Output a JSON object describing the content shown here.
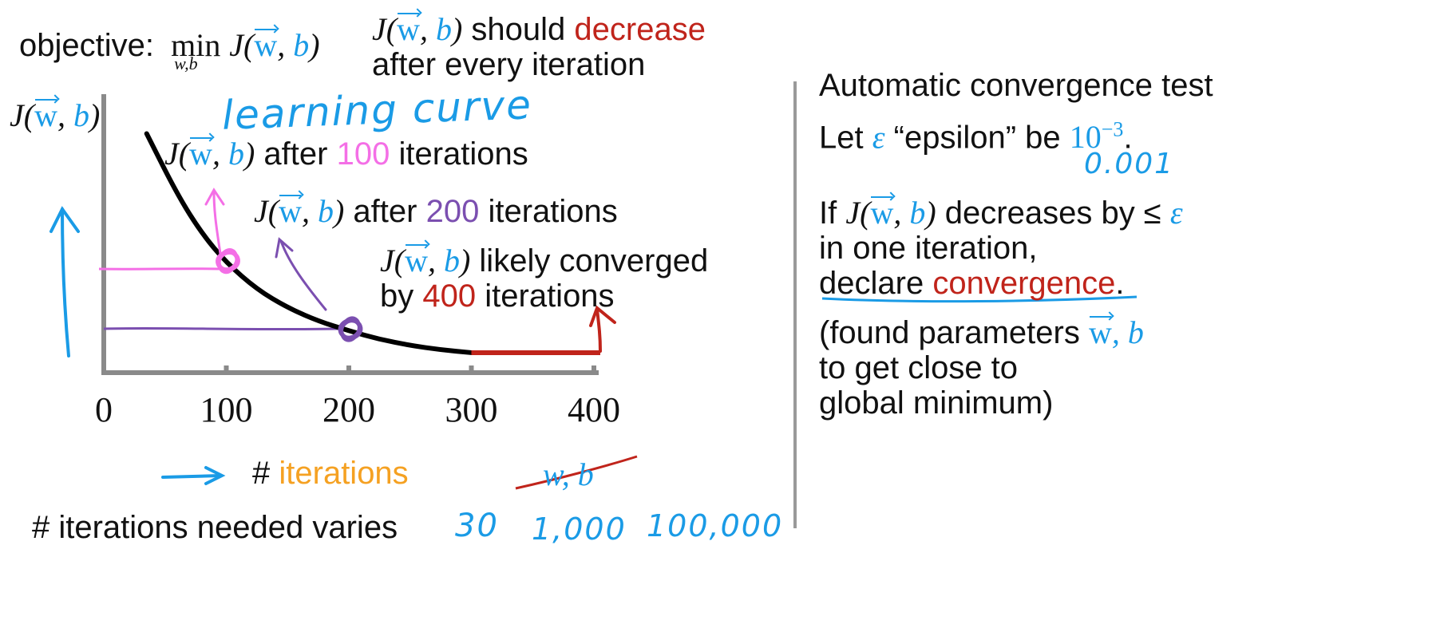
{
  "objective": {
    "label": "objective:",
    "min_op": "min",
    "min_sub": "w,b",
    "J": "J",
    "w": "w",
    "b": "b"
  },
  "top_note": {
    "line1_prefix": "should",
    "line1_highlight": "decrease",
    "line2": "after every iteration"
  },
  "handwritten_title": "learning curve",
  "y_axis_label": {
    "J": "J",
    "w": "w",
    "b": "b"
  },
  "annotations": {
    "a100": {
      "text1": "after",
      "number": "100",
      "text2": "iterations"
    },
    "a200": {
      "text1": "after",
      "number": "200",
      "text2": "iterations"
    },
    "a400": {
      "line1": "likely converged",
      "line2_prefix": "by",
      "number": "400",
      "line2_suffix": "iterations"
    }
  },
  "x_axis": {
    "tick_labels": [
      "0",
      "100",
      "200",
      "300",
      "400"
    ],
    "label_prefix": "#",
    "label_highlight": "iterations",
    "crossed_out": "w, b"
  },
  "bottom_note": {
    "label": "# iterations needed varies",
    "examples": [
      "30",
      "1,000",
      "100,000"
    ]
  },
  "right_panel": {
    "title": "Automatic convergence test",
    "let_prefix": "Let",
    "epsilon_symbol": "ε",
    "epsilon_name": "“epsilon” be",
    "epsilon_base": "10",
    "epsilon_exp": "−3",
    "epsilon_decimal": "0.001",
    "if_prefix": "If",
    "if_suffix": "decreases by ≤",
    "line2": "in one iteration,",
    "declare_prefix": "declare",
    "declare_highlight": "convergence",
    "paren_line1_prefix": "(found parameters",
    "paren_params": "w, b",
    "paren_line2": "to get close to",
    "paren_line3": "global minimum)"
  },
  "chart_data": {
    "type": "line",
    "xlabel": "# iterations",
    "ylabel": "J(w,b)",
    "x_ticks": [
      0,
      100,
      200,
      300,
      400
    ],
    "xlim": [
      0,
      400
    ],
    "series": [
      {
        "x": [
          35,
          60,
          80,
          100,
          125,
          150,
          175,
          200,
          225,
          250,
          275,
          300
        ],
        "y": [
          0.91,
          0.66,
          0.5,
          0.38,
          0.27,
          0.195,
          0.14,
          0.1,
          0.065,
          0.04,
          0.022,
          0.01
        ]
      },
      {
        "x": [
          300,
          400
        ],
        "y": [
          0.01,
          0.01
        ]
      }
    ],
    "highlighted_points": [
      {
        "x": 100,
        "y": 0.38,
        "color": "#f46fe6"
      },
      {
        "x": 200,
        "y": 0.1,
        "color": "#7b4fb0"
      }
    ],
    "colors": {
      "curve": "#000000",
      "converged": "#c0241b",
      "axis": "#8a8a8a"
    }
  }
}
